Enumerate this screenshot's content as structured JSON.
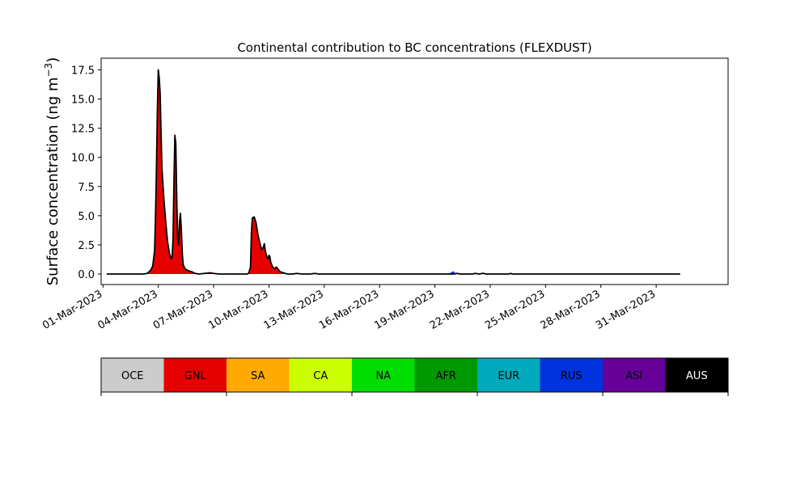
{
  "chart_data": {
    "type": "area",
    "title": "Continental contribution to BC concentrations (FLEXDUST)",
    "ylabel_main": "Surface concentration (ng m",
    "ylabel_sup": "−3",
    "ylabel_close": ")",
    "xlabel": "",
    "ylim": [
      -0.9,
      18.5
    ],
    "xlim_days": [
      -0.1,
      33.9
    ],
    "x_ticks": [
      "01-Mar-2023",
      "04-Mar-2023",
      "07-Mar-2023",
      "10-Mar-2023",
      "13-Mar-2023",
      "16-Mar-2023",
      "19-Mar-2023",
      "22-Mar-2023",
      "25-Mar-2023",
      "28-Mar-2023",
      "31-Mar-2023"
    ],
    "y_ticks": [
      "0.0",
      "2.5",
      "5.0",
      "7.5",
      "10.0",
      "12.5",
      "15.0",
      "17.5"
    ],
    "y_tick_values": [
      0,
      2.5,
      5,
      7.5,
      10,
      12.5,
      15,
      17.5
    ],
    "series": [
      {
        "name": "GNL",
        "color": "#e60000",
        "points": [
          [
            0.2,
            0
          ],
          [
            1.5,
            0
          ],
          [
            2.2,
            0
          ],
          [
            2.4,
            0.05
          ],
          [
            2.5,
            0.2
          ],
          [
            2.6,
            0.35
          ],
          [
            2.7,
            0.7
          ],
          [
            2.8,
            2.0
          ],
          [
            2.85,
            5.0
          ],
          [
            2.9,
            9.0
          ],
          [
            2.95,
            14.0
          ],
          [
            3.0,
            17.5
          ],
          [
            3.05,
            16.8
          ],
          [
            3.1,
            15.5
          ],
          [
            3.15,
            12.0
          ],
          [
            3.2,
            9.0
          ],
          [
            3.3,
            6.5
          ],
          [
            3.4,
            4.5
          ],
          [
            3.5,
            2.8
          ],
          [
            3.6,
            1.8
          ],
          [
            3.7,
            1.3
          ],
          [
            3.75,
            1.5
          ],
          [
            3.8,
            3.0
          ],
          [
            3.85,
            8.0
          ],
          [
            3.9,
            11.9
          ],
          [
            3.95,
            11.2
          ],
          [
            4.0,
            6.5
          ],
          [
            4.05,
            3.0
          ],
          [
            4.1,
            2.5
          ],
          [
            4.15,
            4.5
          ],
          [
            4.2,
            5.2
          ],
          [
            4.25,
            3.8
          ],
          [
            4.3,
            1.8
          ],
          [
            4.35,
            0.8
          ],
          [
            4.45,
            0.45
          ],
          [
            4.6,
            0.3
          ],
          [
            4.8,
            0.2
          ],
          [
            5.0,
            0.05
          ],
          [
            5.2,
            0
          ],
          [
            5.5,
            0.05
          ],
          [
            5.8,
            0.1
          ],
          [
            6.0,
            0.05
          ],
          [
            6.3,
            0
          ],
          [
            7.8,
            0
          ],
          [
            7.9,
            0.05
          ],
          [
            8.0,
            0.6
          ],
          [
            8.05,
            3.5
          ],
          [
            8.1,
            4.8
          ],
          [
            8.2,
            4.9
          ],
          [
            8.3,
            4.4
          ],
          [
            8.4,
            3.4
          ],
          [
            8.5,
            2.7
          ],
          [
            8.6,
            2.1
          ],
          [
            8.7,
            2.3
          ],
          [
            8.75,
            2.6
          ],
          [
            8.8,
            2.0
          ],
          [
            8.9,
            1.4
          ],
          [
            8.95,
            1.3
          ],
          [
            9.0,
            1.6
          ],
          [
            9.05,
            1.5
          ],
          [
            9.1,
            1.0
          ],
          [
            9.2,
            0.6
          ],
          [
            9.3,
            0.45
          ],
          [
            9.4,
            0.6
          ],
          [
            9.5,
            0.4
          ],
          [
            9.6,
            0.2
          ],
          [
            9.8,
            0.1
          ],
          [
            10.0,
            0
          ],
          [
            10.3,
            0
          ],
          [
            10.5,
            0.05
          ],
          [
            10.8,
            0
          ],
          [
            11.2,
            0
          ],
          [
            11.5,
            0.05
          ],
          [
            11.7,
            0
          ],
          [
            19.0,
            0
          ],
          [
            19.2,
            0.05
          ],
          [
            19.4,
            0
          ],
          [
            20.0,
            0
          ],
          [
            20.2,
            0.05
          ],
          [
            20.4,
            0
          ],
          [
            20.6,
            0.06
          ],
          [
            20.8,
            0
          ],
          [
            22.0,
            0
          ],
          [
            22.1,
            0.05
          ],
          [
            22.2,
            0
          ],
          [
            31.3,
            0
          ]
        ]
      },
      {
        "name": "RUS",
        "color": "#0033dd",
        "points": [
          [
            18.7,
            0
          ],
          [
            18.9,
            0.15
          ],
          [
            19.0,
            0.25
          ],
          [
            19.1,
            0.1
          ],
          [
            19.2,
            0
          ]
        ]
      }
    ],
    "outline_color": "#000000",
    "legend_entries": [
      {
        "label": "OCE",
        "color": "#cccccc",
        "text_color": "#000000"
      },
      {
        "label": "GNL",
        "color": "#e60000",
        "text_color": "#000000"
      },
      {
        "label": "SA",
        "color": "#ffaa00",
        "text_color": "#000000"
      },
      {
        "label": "CA",
        "color": "#ccff00",
        "text_color": "#000000"
      },
      {
        "label": "NA",
        "color": "#00dd00",
        "text_color": "#000000"
      },
      {
        "label": "AFR",
        "color": "#009900",
        "text_color": "#000000"
      },
      {
        "label": "EUR",
        "color": "#00aabb",
        "text_color": "#000000"
      },
      {
        "label": "RUS",
        "color": "#0033dd",
        "text_color": "#000000"
      },
      {
        "label": "ASI",
        "color": "#660099",
        "text_color": "#000000"
      },
      {
        "label": "AUS",
        "color": "#000000",
        "text_color": "#ffffff"
      }
    ]
  }
}
